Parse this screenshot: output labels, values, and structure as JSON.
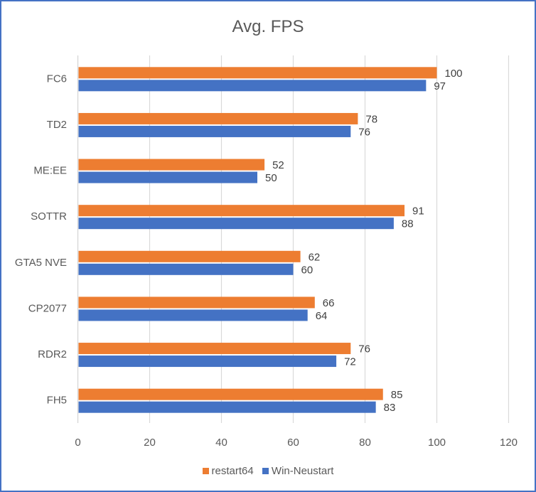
{
  "chart_data": {
    "type": "bar",
    "orientation": "horizontal",
    "title": "Avg. FPS",
    "xlabel": "",
    "ylabel": "",
    "categories": [
      "FC6",
      "TD2",
      "ME:EE",
      "SOTTR",
      "GTA5 NVE",
      "CP2077",
      "RDR2",
      "FH5"
    ],
    "series": [
      {
        "name": "restart64",
        "color": "#ED7D31",
        "values": [
          100,
          78,
          52,
          91,
          62,
          66,
          76,
          85
        ]
      },
      {
        "name": "Win-Neustart",
        "color": "#4472C4",
        "values": [
          97,
          76,
          50,
          88,
          60,
          64,
          72,
          83
        ]
      }
    ],
    "xlim": [
      0,
      120
    ],
    "xticks": [
      0,
      20,
      40,
      60,
      80,
      100,
      120
    ],
    "xtick_labels": [
      "0",
      "20",
      "40",
      "60",
      "80",
      "100",
      "120"
    ],
    "grid": true,
    "legend_position": "bottom",
    "data_labels": true
  }
}
